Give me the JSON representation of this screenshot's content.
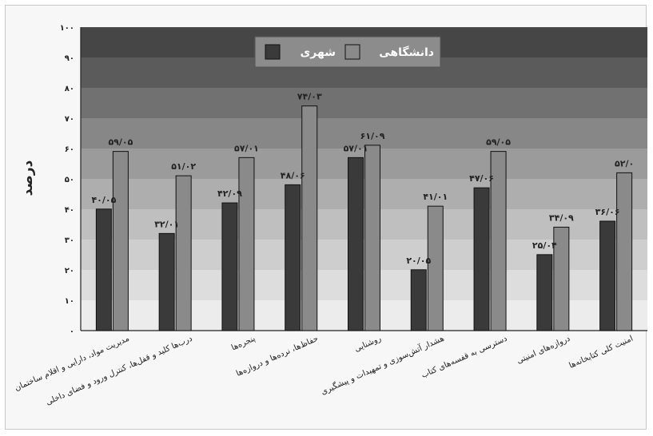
{
  "chart_data": {
    "type": "bar",
    "title": "",
    "xlabel": "",
    "ylabel": "درصد",
    "ylim": [
      0,
      100
    ],
    "yticks": [
      0,
      10,
      20,
      30,
      40,
      50,
      60,
      70,
      80,
      90,
      100
    ],
    "ytick_labels": [
      "۰",
      "۱۰",
      "۲۰",
      "۳۰",
      "۴۰",
      "۵۰",
      "۶۰",
      "۷۰",
      "۸۰",
      "۹۰",
      "۱۰۰"
    ],
    "legend_position": "top-center",
    "categories": [
      "مدیریت مواد، دارایی و اقلام ساختمان",
      "درب‌ها کلید و قفل‌ها، کنترل ورود و فضای داخلی",
      "پنجره‌ها",
      "حفاظ‌ها، نرده‌ها و دروازه‌ها",
      "روشنایی",
      "هشدار آتش‌سوزی و تمهیدات و پیشگیری",
      "دسترسی به قفسه‌های کتاب",
      "دروازه‌های امنیتی",
      "امنیت کلی کتابخانه‌ها"
    ],
    "series": [
      {
        "name": "شهری",
        "color": "#3a3a3a",
        "values": [
          40.05,
          32.01,
          42.09,
          48.06,
          57.01,
          20.05,
          47.06,
          25.04,
          36.06
        ],
        "labels": [
          "۴۰/۰۵",
          "۳۲/۰۱",
          "۴۲/۰۹",
          "۴۸/۰۶",
          "۵۷/۰۱",
          "۲۰/۰۵",
          "۴۷/۰۶",
          "۲۵/۰۴",
          "۳۶/۰۶"
        ]
      },
      {
        "name": "دانشگاهی",
        "color": "#8a8a8a",
        "values": [
          59.05,
          51.02,
          57.01,
          74.03,
          61.09,
          41.01,
          59.05,
          34.09,
          52.0
        ],
        "labels": [
          "۵۹/۰۵",
          "۵۱/۰۲",
          "۵۷/۰۱",
          "۷۴/۰۳",
          "۶۱/۰۹",
          "۴۱/۰۱",
          "۵۹/۰۵",
          "۳۴/۰۹",
          "۵۲/۰"
        ]
      }
    ],
    "background_bands": [
      "#ececec",
      "#dddddd",
      "#cecece",
      "#bfbfbf",
      "#aeaeae",
      "#9b9b9b",
      "#878787",
      "#717171",
      "#5b5b5b",
      "#464646"
    ],
    "grid": false
  }
}
